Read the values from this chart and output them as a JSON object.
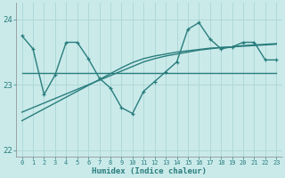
{
  "x": [
    0,
    1,
    2,
    3,
    4,
    5,
    6,
    7,
    8,
    9,
    10,
    11,
    12,
    13,
    14,
    15,
    16,
    17,
    18,
    19,
    20,
    21,
    22,
    23
  ],
  "y_main": [
    23.75,
    23.55,
    22.85,
    23.15,
    23.65,
    23.65,
    23.4,
    23.1,
    22.95,
    22.65,
    22.56,
    22.9,
    23.05,
    23.2,
    23.35,
    23.85,
    23.95,
    23.7,
    23.55,
    23.58,
    23.65,
    23.65,
    23.38,
    23.38
  ],
  "y_flat": [
    23.18,
    23.18,
    23.18,
    23.18,
    23.18,
    23.18,
    23.18,
    23.18,
    23.18,
    23.18,
    23.18,
    23.18,
    23.18,
    23.18,
    23.18,
    23.18,
    23.18,
    23.18,
    23.18,
    23.18,
    23.18,
    23.18,
    23.18,
    23.18
  ],
  "y_trend1": [
    22.58,
    22.65,
    22.72,
    22.79,
    22.86,
    22.93,
    23.0,
    23.07,
    23.14,
    23.21,
    23.28,
    23.35,
    23.4,
    23.44,
    23.47,
    23.5,
    23.53,
    23.55,
    23.57,
    23.58,
    23.6,
    23.61,
    23.62,
    23.63
  ],
  "y_trend2": [
    22.45,
    22.54,
    22.63,
    22.72,
    22.81,
    22.9,
    22.99,
    23.08,
    23.17,
    23.26,
    23.34,
    23.4,
    23.44,
    23.47,
    23.5,
    23.52,
    23.54,
    23.56,
    23.57,
    23.58,
    23.59,
    23.6,
    23.61,
    23.62
  ],
  "line_color": "#2a7d7d",
  "background_color": "#caeaea",
  "grid_color": "#b0d8d8",
  "xlabel": "Humidex (Indice chaleur)",
  "ylim": [
    21.9,
    24.25
  ],
  "xlim": [
    -0.5,
    23.5
  ],
  "yticks": [
    22,
    23,
    24
  ],
  "xticks": [
    0,
    1,
    2,
    3,
    4,
    5,
    6,
    7,
    8,
    9,
    10,
    11,
    12,
    13,
    14,
    15,
    16,
    17,
    18,
    19,
    20,
    21,
    22,
    23
  ],
  "marker": "+",
  "marker_size": 3.5,
  "line_width": 1.0
}
